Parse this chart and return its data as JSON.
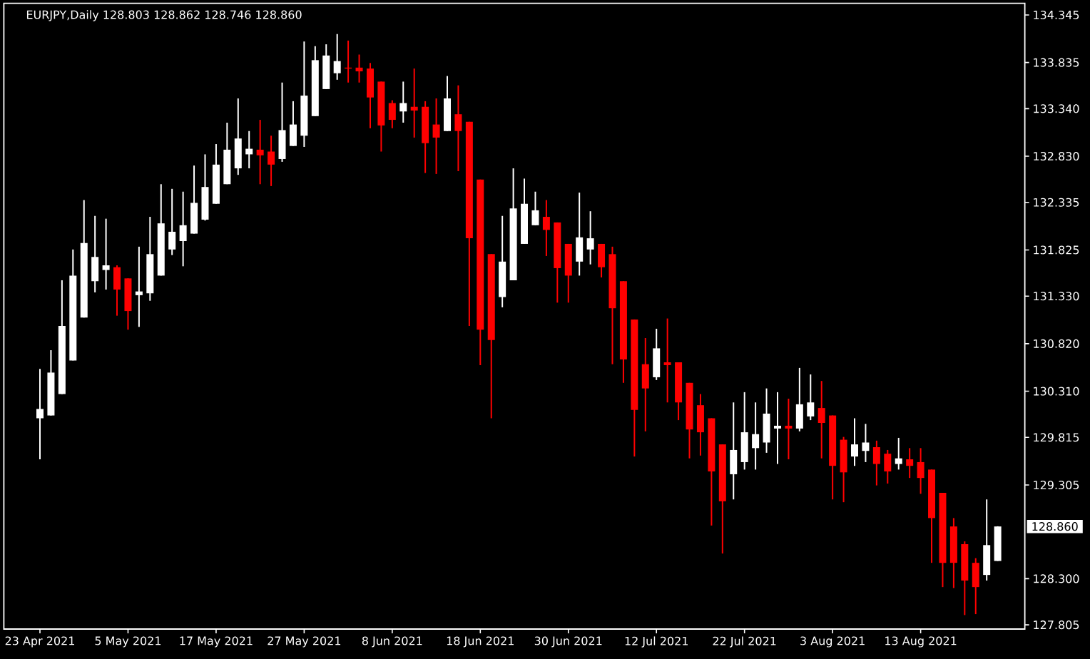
{
  "chart_data": {
    "type": "candlestick",
    "title": "EURJPY,Daily 128.803 128.862 128.746 128.860",
    "categories": [
      "23 Apr 2021",
      null,
      null,
      null,
      null,
      null,
      null,
      null,
      "5 May 2021",
      null,
      null,
      null,
      null,
      null,
      null,
      null,
      "17 May 2021",
      null,
      null,
      null,
      null,
      null,
      null,
      null,
      "27 May 2021",
      null,
      null,
      null,
      null,
      null,
      null,
      null,
      "8 Jun 2021",
      null,
      null,
      null,
      null,
      null,
      null,
      null,
      "18 Jun 2021",
      null,
      null,
      null,
      null,
      null,
      null,
      null,
      "30 Jun 2021",
      null,
      null,
      null,
      null,
      null,
      null,
      null,
      "12 Jul 2021",
      null,
      null,
      null,
      null,
      null,
      null,
      null,
      "22 Jul 2021",
      null,
      null,
      null,
      null,
      null,
      null,
      null,
      "3 Aug 2021",
      null,
      null,
      null,
      null,
      null,
      null,
      null,
      "13 Aug 2021",
      null,
      null,
      null,
      null,
      null,
      null,
      null
    ],
    "ohlc": [
      [
        130.02,
        130.55,
        129.58,
        130.12
      ],
      [
        130.05,
        130.75,
        130.05,
        130.51
      ],
      [
        130.28,
        131.5,
        130.28,
        131.01
      ],
      [
        130.64,
        131.83,
        130.64,
        131.55
      ],
      [
        131.1,
        132.36,
        131.1,
        131.9
      ],
      [
        131.49,
        132.19,
        131.37,
        131.75
      ],
      [
        131.61,
        132.16,
        131.4,
        131.66
      ],
      [
        131.64,
        131.66,
        131.12,
        131.4
      ],
      [
        131.52,
        131.52,
        130.97,
        131.17
      ],
      [
        131.34,
        131.86,
        131.0,
        131.38
      ],
      [
        131.36,
        132.18,
        131.28,
        131.78
      ],
      [
        131.55,
        132.53,
        131.55,
        132.11
      ],
      [
        131.83,
        132.48,
        131.77,
        132.02
      ],
      [
        131.92,
        132.45,
        131.65,
        132.09
      ],
      [
        132.0,
        132.73,
        132.0,
        132.33
      ],
      [
        132.15,
        132.85,
        132.14,
        132.5
      ],
      [
        132.32,
        132.96,
        132.32,
        132.74
      ],
      [
        132.53,
        133.19,
        132.53,
        132.9
      ],
      [
        132.7,
        133.45,
        132.63,
        133.02
      ],
      [
        132.85,
        133.1,
        132.7,
        132.91
      ],
      [
        132.9,
        133.22,
        132.53,
        132.84
      ],
      [
        132.88,
        133.05,
        132.51,
        132.74
      ],
      [
        132.8,
        133.62,
        132.77,
        133.11
      ],
      [
        132.94,
        133.42,
        132.94,
        133.17
      ],
      [
        133.05,
        134.06,
        132.93,
        133.48
      ],
      [
        133.26,
        134.01,
        133.26,
        133.86
      ],
      [
        133.55,
        134.03,
        133.55,
        133.91
      ],
      [
        133.72,
        134.14,
        133.65,
        133.85
      ],
      [
        133.78,
        134.07,
        133.62,
        133.77
      ],
      [
        133.78,
        133.92,
        133.62,
        133.74
      ],
      [
        133.77,
        133.83,
        133.13,
        133.46
      ],
      [
        133.63,
        133.63,
        132.88,
        133.16
      ],
      [
        133.4,
        133.43,
        133.13,
        133.22
      ],
      [
        133.31,
        133.63,
        133.19,
        133.4
      ],
      [
        133.36,
        133.77,
        133.03,
        133.32
      ],
      [
        133.36,
        133.42,
        132.65,
        132.97
      ],
      [
        133.17,
        133.45,
        132.64,
        133.03
      ],
      [
        133.1,
        133.69,
        133.1,
        133.45
      ],
      [
        133.28,
        133.59,
        132.67,
        133.1
      ],
      [
        133.2,
        133.2,
        131.01,
        131.95
      ],
      [
        132.58,
        132.58,
        130.59,
        130.97
      ],
      [
        131.78,
        131.78,
        130.02,
        130.86
      ],
      [
        131.32,
        132.19,
        131.21,
        131.7
      ],
      [
        131.5,
        132.7,
        131.5,
        132.27
      ],
      [
        131.89,
        132.59,
        131.89,
        132.32
      ],
      [
        132.09,
        132.45,
        132.09,
        132.25
      ],
      [
        132.18,
        132.36,
        131.76,
        132.04
      ],
      [
        132.12,
        132.12,
        131.26,
        131.63
      ],
      [
        131.89,
        131.89,
        131.26,
        131.55
      ],
      [
        131.7,
        132.44,
        131.55,
        131.96
      ],
      [
        131.83,
        132.24,
        131.67,
        131.95
      ],
      [
        131.89,
        131.89,
        131.53,
        131.64
      ],
      [
        131.78,
        131.86,
        130.6,
        131.2
      ],
      [
        131.49,
        131.49,
        130.4,
        130.65
      ],
      [
        131.08,
        131.08,
        129.61,
        130.11
      ],
      [
        130.6,
        130.88,
        129.88,
        130.34
      ],
      [
        130.46,
        130.98,
        130.43,
        130.77
      ],
      [
        130.62,
        131.09,
        130.19,
        130.59
      ],
      [
        130.62,
        130.62,
        130.0,
        130.19
      ],
      [
        130.4,
        130.4,
        129.59,
        129.9
      ],
      [
        130.16,
        130.28,
        129.62,
        129.87
      ],
      [
        130.02,
        130.02,
        128.87,
        129.45
      ],
      [
        129.74,
        129.74,
        128.57,
        129.13
      ],
      [
        129.42,
        130.19,
        129.15,
        129.68
      ],
      [
        129.55,
        130.3,
        129.47,
        129.87
      ],
      [
        129.7,
        130.19,
        129.47,
        129.85
      ],
      [
        129.76,
        130.34,
        129.65,
        130.07
      ],
      [
        129.91,
        130.3,
        129.53,
        129.94
      ],
      [
        129.94,
        130.23,
        129.58,
        129.91
      ],
      [
        129.91,
        130.56,
        129.88,
        130.17
      ],
      [
        130.04,
        130.49,
        130.0,
        130.19
      ],
      [
        130.13,
        130.42,
        129.59,
        129.97
      ],
      [
        130.05,
        130.05,
        129.15,
        129.51
      ],
      [
        129.79,
        129.82,
        129.12,
        129.44
      ],
      [
        129.61,
        130.02,
        129.51,
        129.74
      ],
      [
        129.67,
        129.96,
        129.55,
        129.76
      ],
      [
        129.71,
        129.78,
        129.3,
        129.53
      ],
      [
        129.64,
        129.68,
        129.32,
        129.45
      ],
      [
        129.53,
        129.81,
        129.47,
        129.59
      ],
      [
        129.58,
        129.7,
        129.38,
        129.51
      ],
      [
        129.55,
        129.7,
        129.21,
        129.38
      ],
      [
        129.47,
        129.47,
        128.47,
        128.95
      ],
      [
        129.22,
        129.22,
        128.21,
        128.47
      ],
      [
        128.86,
        128.95,
        128.2,
        128.47
      ],
      [
        128.67,
        128.7,
        127.91,
        128.28
      ],
      [
        128.47,
        128.52,
        127.92,
        128.21
      ],
      [
        128.34,
        129.15,
        128.28,
        128.66
      ],
      [
        128.49,
        128.862,
        128.49,
        128.86
      ]
    ],
    "colors": [
      "#ffffff",
      "#ffffff",
      "#ffffff",
      "#ffffff",
      "#ffffff",
      "#ffffff",
      "#ffffff",
      "#ff0000",
      "#ff0000",
      "#ffffff",
      "#ffffff",
      "#ffffff",
      "#ffffff",
      "#ffffff",
      "#ffffff",
      "#ffffff",
      "#ffffff",
      "#ffffff",
      "#ffffff",
      "#ffffff",
      "#ff0000",
      "#ff0000",
      "#ffffff",
      "#ffffff",
      "#ffffff",
      "#ffffff",
      "#ffffff",
      "#ffffff",
      "#ff0000",
      "#ff0000",
      "#ff0000",
      "#ff0000",
      "#ff0000",
      "#ffffff",
      "#ff0000",
      "#ff0000",
      "#ff0000",
      "#ffffff",
      "#ff0000",
      "#ff0000",
      "#ff0000",
      "#ff0000",
      "#ffffff",
      "#ffffff",
      "#ffffff",
      "#ffffff",
      "#ff0000",
      "#ff0000",
      "#ff0000",
      "#ffffff",
      "#ffffff",
      "#ff0000",
      "#ff0000",
      "#ff0000",
      "#ff0000",
      "#ff0000",
      "#ffffff",
      "#ff0000",
      "#ff0000",
      "#ff0000",
      "#ff0000",
      "#ff0000",
      "#ff0000",
      "#ffffff",
      "#ffffff",
      "#ffffff",
      "#ffffff",
      "#ffffff",
      "#ff0000",
      "#ffffff",
      "#ffffff",
      "#ff0000",
      "#ff0000",
      "#ff0000",
      "#ffffff",
      "#ffffff",
      "#ff0000",
      "#ff0000",
      "#ffffff",
      "#ff0000",
      "#ff0000",
      "#ff0000",
      "#ff0000",
      "#ff0000",
      "#ff0000",
      "#ff0000",
      "#ffffff",
      "#ffffff"
    ],
    "ylim": [
      127.76,
      134.47
    ],
    "yticks": [
      134.345,
      133.835,
      {
        "value": 133.34,
        "label": "133.340"
      },
      {
        "value": 132.83,
        "label": "132.830"
      },
      132.335,
      131.825,
      {
        "value": 131.33,
        "label": "131.330"
      },
      {
        "value": 130.82,
        "label": "130.820"
      },
      {
        "value": 130.31,
        "label": "130.310"
      },
      129.815,
      129.305,
      {
        "value": 128.3,
        "label": "128.300"
      },
      127.805
    ],
    "annotations": [
      "128.860"
    ]
  }
}
